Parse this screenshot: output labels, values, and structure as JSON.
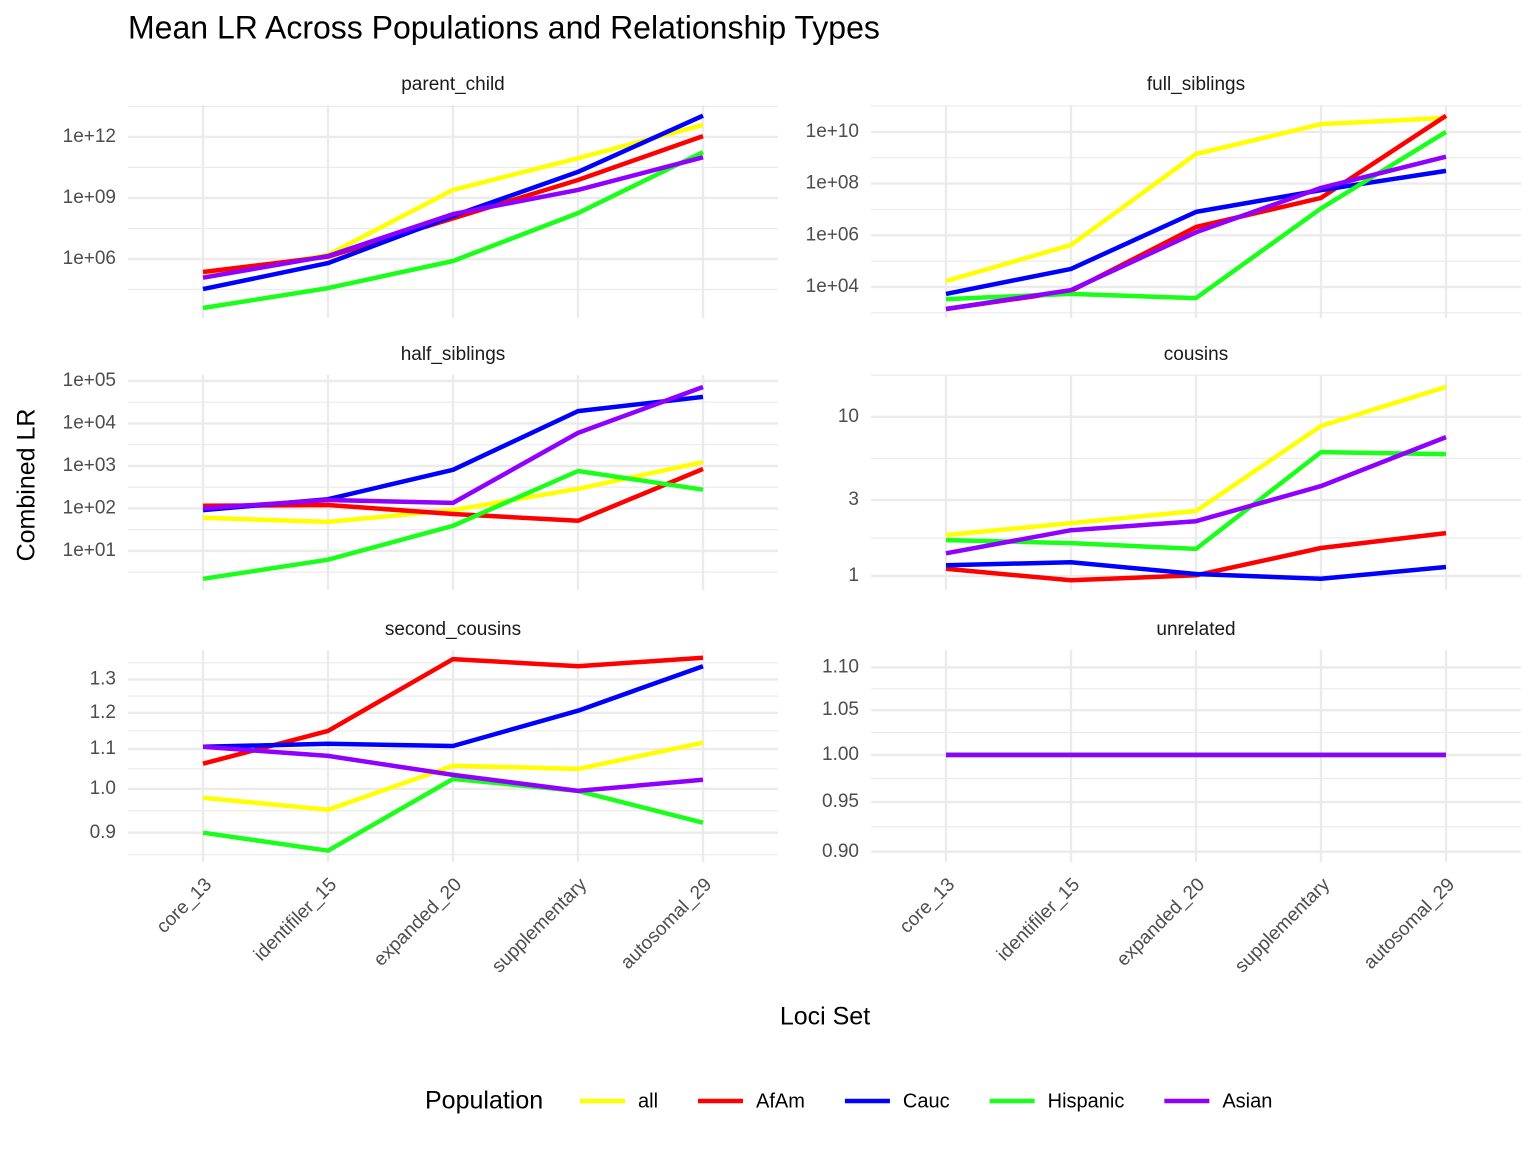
{
  "title": "Mean LR Across Populations and Relationship Types",
  "x_label": "Loci Set",
  "y_label": "Combined LR",
  "legend_title": "Population",
  "chart_data": [
    {
      "type": "line",
      "title": "parent_child",
      "log_y": true,
      "grid": true,
      "categories": [
        "core_13",
        "identifiler_15",
        "expanded_20",
        "supplementary",
        "autosomal_29"
      ],
      "ylim": [
        1259,
        37000000000000
      ],
      "yticks": [
        {
          "value": 1000000,
          "label": "1e+06"
        },
        {
          "value": 1000000000,
          "label": "1e+09"
        },
        {
          "value": 1000000000000,
          "label": "1e+12"
        }
      ],
      "series": [
        {
          "name": "all",
          "color": "#ffff00",
          "values": [
            130000,
            1600000,
            2500000000,
            90000000000,
            3900000000000
          ]
        },
        {
          "name": "AfAm",
          "color": "#ff0000",
          "values": [
            230000,
            1300000,
            100000000,
            7600000000,
            1100000000000
          ]
        },
        {
          "name": "Cauc",
          "color": "#0000ff",
          "values": [
            33000,
            630000,
            130000000,
            19000000000,
            11000000000000
          ]
        },
        {
          "name": "Hispanic",
          "color": "#1aff1a",
          "values": [
            3900,
            37000,
            800000,
            180000000,
            180000000000
          ]
        },
        {
          "name": "Asian",
          "color": "#8f00ff",
          "values": [
            120000,
            1400000,
            160000000,
            2500000000,
            100000000000
          ]
        }
      ]
    },
    {
      "type": "line",
      "title": "full_siblings",
      "log_y": true,
      "grid": true,
      "categories": [
        "core_13",
        "identifiler_15",
        "expanded_20",
        "supplementary",
        "autosomal_29"
      ],
      "ylim": [
        630,
        110000000000
      ],
      "yticks": [
        {
          "value": 10000,
          "label": "1e+04"
        },
        {
          "value": 1000000,
          "label": "1e+06"
        },
        {
          "value": 100000000,
          "label": "1e+08"
        },
        {
          "value": 10000000000,
          "label": "1e+10"
        }
      ],
      "series": [
        {
          "name": "all",
          "color": "#ffff00",
          "values": [
            17000,
            420000,
            1400000000,
            20000000000,
            35000000000
          ]
        },
        {
          "name": "AfAm",
          "color": "#ff0000",
          "values": [
            1400,
            7000,
            2100000,
            28000000,
            42000000000
          ]
        },
        {
          "name": "Cauc",
          "color": "#0000ff",
          "values": [
            5400,
            50000,
            8000000,
            56000000,
            310000000
          ]
        },
        {
          "name": "Hispanic",
          "color": "#1aff1a",
          "values": [
            3400,
            5400,
            3700,
            11000000,
            10000000000
          ]
        },
        {
          "name": "Asian",
          "color": "#8f00ff",
          "values": [
            1400,
            7600,
            1300000,
            68000000,
            1100000000
          ]
        }
      ]
    },
    {
      "type": "line",
      "title": "half_siblings",
      "log_y": true,
      "grid": true,
      "categories": [
        "core_13",
        "identifiler_15",
        "expanded_20",
        "supplementary",
        "autosomal_29"
      ],
      "ylim": [
        1.2,
        138000
      ],
      "yticks": [
        {
          "value": 10,
          "label": "1e+01"
        },
        {
          "value": 100,
          "label": "1e+02"
        },
        {
          "value": 1000,
          "label": "1e+03"
        },
        {
          "value": 10000,
          "label": "1e+04"
        },
        {
          "value": 100000,
          "label": "1e+05"
        }
      ],
      "series": [
        {
          "name": "all",
          "color": "#ffff00",
          "values": [
            60,
            48,
            91,
            290,
            1230
          ]
        },
        {
          "name": "AfAm",
          "color": "#ff0000",
          "values": [
            115,
            120,
            74,
            51,
            850
          ]
        },
        {
          "name": "Cauc",
          "color": "#0000ff",
          "values": [
            91,
            165,
            810,
            19500,
            42000
          ]
        },
        {
          "name": "Hispanic",
          "color": "#1aff1a",
          "values": [
            2.2,
            6.2,
            39,
            760,
            275
          ]
        },
        {
          "name": "Asian",
          "color": "#8f00ff",
          "values": [
            100,
            158,
            135,
            6000,
            72000
          ]
        }
      ]
    },
    {
      "type": "line",
      "title": "cousins",
      "log_y": true,
      "grid": true,
      "categories": [
        "core_13",
        "identifiler_15",
        "expanded_20",
        "supplementary",
        "autosomal_29"
      ],
      "ylim": [
        0.817,
        18.3
      ],
      "yticks": [
        1,
        3,
        10
      ],
      "series": [
        {
          "name": "all",
          "color": "#ffff00",
          "values": [
            1.81,
            2.15,
            2.56,
            8.75,
            15.4
          ]
        },
        {
          "name": "AfAm",
          "color": "#ff0000",
          "values": [
            1.11,
            0.94,
            1.01,
            1.5,
            1.86
          ]
        },
        {
          "name": "Cauc",
          "color": "#0000ff",
          "values": [
            1.17,
            1.22,
            1.03,
            0.96,
            1.14
          ]
        },
        {
          "name": "Hispanic",
          "color": "#1aff1a",
          "values": [
            1.68,
            1.61,
            1.48,
            6.0,
            5.83
          ]
        },
        {
          "name": "Asian",
          "color": "#8f00ff",
          "values": [
            1.39,
            1.94,
            2.21,
            3.67,
            7.46
          ]
        }
      ]
    },
    {
      "type": "line",
      "title": "second_cousins",
      "log_y": true,
      "grid": true,
      "categories": [
        "core_13",
        "identifiler_15",
        "expanded_20",
        "supplementary",
        "autosomal_29"
      ],
      "ylim": [
        0.839,
        1.395
      ],
      "yticks": [
        0.9,
        {
          "value": 1,
          "label": "1.0"
        },
        1.1,
        1.2,
        1.3
      ],
      "series": [
        {
          "name": "all",
          "color": "#ffff00",
          "values": [
            0.979,
            0.951,
            1.057,
            1.049,
            1.117
          ]
        },
        {
          "name": "AfAm",
          "color": "#ff0000",
          "values": [
            1.062,
            1.149,
            1.365,
            1.342,
            1.369
          ]
        },
        {
          "name": "Cauc",
          "color": "#0000ff",
          "values": [
            1.106,
            1.114,
            1.108,
            1.206,
            1.342
          ]
        },
        {
          "name": "Hispanic",
          "color": "#1aff1a",
          "values": [
            0.9,
            0.862,
            1.024,
            0.995,
            0.922
          ]
        },
        {
          "name": "Asian",
          "color": "#8f00ff",
          "values": [
            1.106,
            1.082,
            1.034,
            0.995,
            1.022
          ]
        }
      ]
    },
    {
      "type": "line",
      "title": "unrelated",
      "log_y": true,
      "grid": true,
      "categories": [
        "core_13",
        "identifiler_15",
        "expanded_20",
        "supplementary",
        "autosomal_29"
      ],
      "ylim": [
        0.89,
        1.121
      ],
      "yticks": [
        {
          "value": 0.9,
          "label": "0.90"
        },
        0.95,
        {
          "value": 1,
          "label": "1.00"
        },
        1.05,
        {
          "value": 1.1,
          "label": "1.10"
        }
      ],
      "series": [
        {
          "name": "all",
          "color": "#ffff00",
          "values": [
            1,
            1,
            1,
            1,
            1
          ]
        },
        {
          "name": "AfAm",
          "color": "#ff0000",
          "values": [
            1,
            1,
            1,
            1,
            1
          ]
        },
        {
          "name": "Cauc",
          "color": "#0000ff",
          "values": [
            1,
            1,
            1,
            1,
            1
          ]
        },
        {
          "name": "Hispanic",
          "color": "#1aff1a",
          "values": [
            1,
            1,
            1,
            1,
            1
          ]
        },
        {
          "name": "Asian",
          "color": "#8f00ff",
          "values": [
            1,
            1,
            1,
            1,
            1
          ]
        }
      ]
    }
  ]
}
